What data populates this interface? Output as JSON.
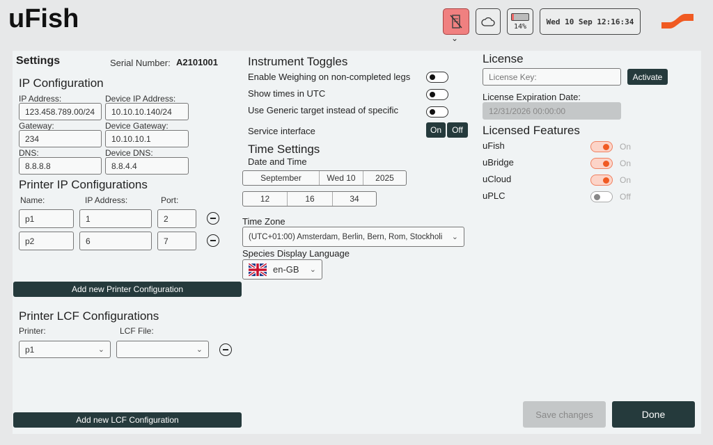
{
  "header": {
    "app_title": "uFish",
    "battery": "14%",
    "battery_level": 0.14,
    "datetime": "Wed 10 Sep 12:16:34",
    "icons": [
      "no-printer-icon",
      "cloud-icon",
      "battery-icon",
      "logo"
    ],
    "accent": "#f05a22",
    "alert_color": "#f08080"
  },
  "settings": {
    "title": "Settings",
    "serial_label": "Serial Number:",
    "serial": "A2101001"
  },
  "ip": {
    "title": "IP Configuration",
    "ip_label": "IP Address:",
    "ip": "123.458.789.00/24",
    "dev_ip_label": "Device IP Address:",
    "dev_ip": "10.10.10.140/24",
    "gw_label": "Gateway:",
    "gw": "234",
    "dev_gw_label": "Device Gateway:",
    "dev_gw": "10.10.10.1",
    "dns_label": "DNS:",
    "dns": "8.8.8.8",
    "dev_dns_label": "Device DNS:",
    "dev_dns": "8.8.4.4"
  },
  "printers": {
    "title": "Printer IP Configurations",
    "col_name": "Name:",
    "col_ip": "IP Address:",
    "col_port": "Port:",
    "rows": [
      {
        "name": "p1",
        "ip": "1",
        "port": "2"
      },
      {
        "name": "p2",
        "ip": "6",
        "port": "7"
      }
    ],
    "add": "Add new Printer Configuration"
  },
  "lcf": {
    "title": "Printer LCF Configurations",
    "printer_label": "Printer:",
    "file_label": "LCF File:",
    "printer": "p1",
    "file": "",
    "add": "Add new LCF Configuration"
  },
  "toggles": {
    "title": "Instrument Toggles",
    "items": [
      {
        "label": "Enable Weighing on non-completed legs",
        "on": false
      },
      {
        "label": "Show times in UTC",
        "on": false
      },
      {
        "label": "Use Generic target instead of specific",
        "on": false
      }
    ],
    "service_label": "Service interface",
    "on": "On",
    "off": "Off"
  },
  "time": {
    "title": "Time Settings",
    "dt_label": "Date and Time",
    "month": "September",
    "day": "Wed 10",
    "year": "2025",
    "hour": "12",
    "minute": "16",
    "second": "34",
    "tz_label": "Time Zone",
    "tz": "(UTC+01:00) Amsterdam, Berlin, Bern, Rom, Stockholi",
    "lang_label": "Species Display Language",
    "lang": "en-GB"
  },
  "license": {
    "title": "License",
    "key_placeholder": "License Key:",
    "activate": "Activate",
    "exp_label": "License Expiration Date:",
    "exp": "12/31/2026 00:00:00",
    "features_title": "Licensed Features",
    "features": [
      {
        "name": "uFish",
        "state": "On"
      },
      {
        "name": "uBridge",
        "state": "On"
      },
      {
        "name": "uCloud",
        "state": "On"
      },
      {
        "name": "uPLC",
        "state": "Off"
      }
    ]
  },
  "footer": {
    "save": "Save changes",
    "done": "Done"
  }
}
